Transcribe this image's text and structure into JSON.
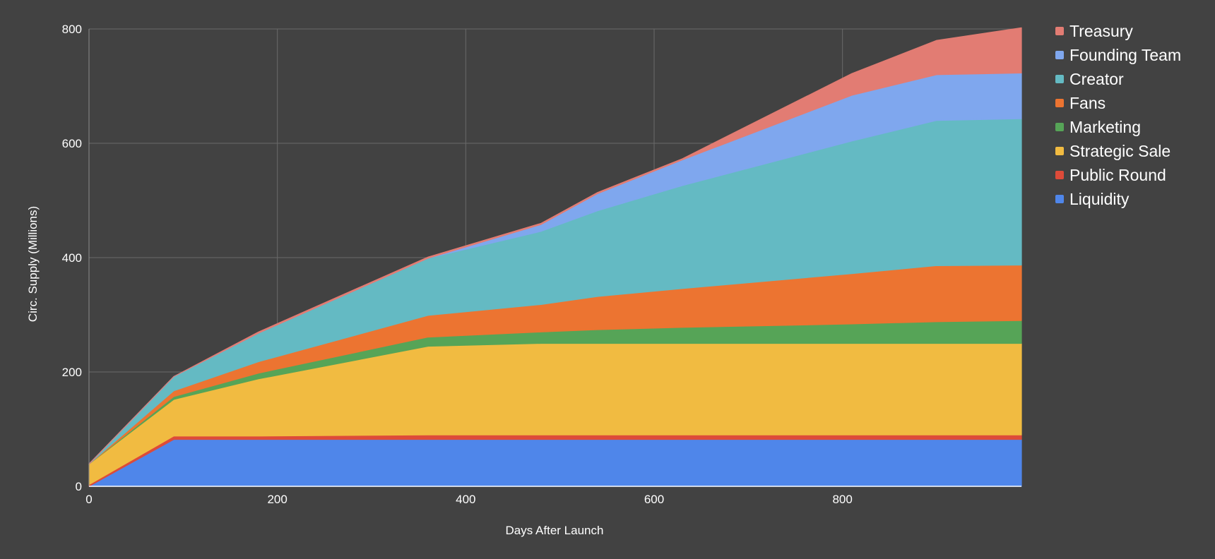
{
  "chart_data": {
    "type": "area",
    "stacked": true,
    "title": "",
    "xlabel": "Days After Launch",
    "ylabel": "Circ. Supply (Millions)",
    "xlim": [
      0,
      990
    ],
    "ylim": [
      0,
      800
    ],
    "xticks": [
      0,
      200,
      400,
      600,
      800
    ],
    "yticks": [
      0,
      200,
      400,
      600,
      800
    ],
    "grid": true,
    "legend_position": "right",
    "x": [
      0,
      90,
      180,
      360,
      480,
      540,
      630,
      810,
      900,
      990
    ],
    "series": [
      {
        "name": "Liquidity",
        "color": "#4f86ea",
        "values": [
          0,
          82,
          82,
          82,
          82,
          82,
          82,
          82,
          82,
          82
        ]
      },
      {
        "name": "Public Round",
        "color": "#dd4b39",
        "values": [
          3,
          6,
          6,
          8,
          8,
          8,
          8,
          8,
          8,
          8
        ]
      },
      {
        "name": "Strategic Sale",
        "color": "#f1bb41",
        "values": [
          36,
          64,
          100,
          155,
          160,
          160,
          160,
          160,
          160,
          160
        ]
      },
      {
        "name": "Marketing",
        "color": "#56a457",
        "values": [
          0,
          5,
          10,
          16,
          20,
          24,
          28,
          34,
          38,
          40
        ]
      },
      {
        "name": "Fans",
        "color": "#ec7431",
        "values": [
          0,
          10,
          20,
          38,
          48,
          58,
          68,
          88,
          98,
          97
        ]
      },
      {
        "name": "Creator",
        "color": "#64bac3",
        "values": [
          0,
          25,
          50,
          100,
          128,
          150,
          180,
          232,
          254,
          256
        ]
      },
      {
        "name": "Founding Team",
        "color": "#7fa7ee",
        "values": [
          0,
          0,
          0,
          0,
          12,
          30,
          45,
          80,
          80,
          80
        ]
      },
      {
        "name": "Treasury",
        "color": "#e27c73",
        "values": [
          0,
          0,
          2,
          2,
          2,
          2,
          2,
          38,
          60,
          79
        ]
      }
    ]
  }
}
